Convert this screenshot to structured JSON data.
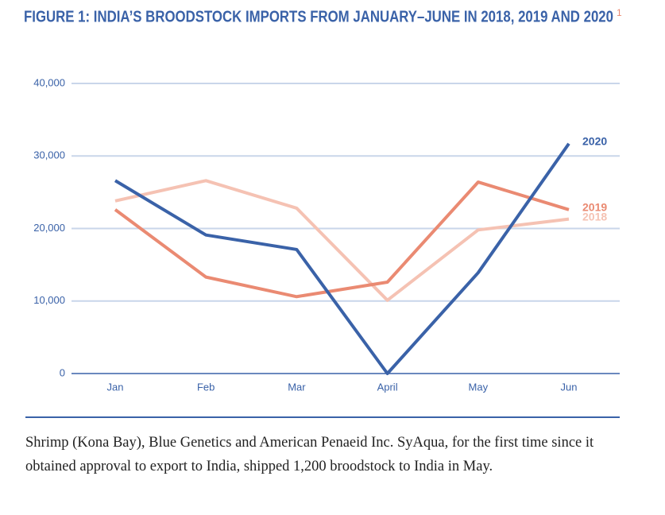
{
  "chart_data": {
    "type": "line",
    "title": "FIGURE 1: INDIA’S BROODSTOCK IMPORTS FROM JANUARY–JUNE IN 2018, 2019 AND 2020",
    "title_footnote": "1",
    "categories": [
      "Jan",
      "Feb",
      "Mar",
      "April",
      "May",
      "Jun"
    ],
    "series": [
      {
        "name": "2018",
        "color": "#f5c2b3",
        "values": [
          23800,
          26600,
          22800,
          10100,
          19800,
          21300
        ]
      },
      {
        "name": "2019",
        "color": "#ea8a72",
        "values": [
          22600,
          13300,
          10600,
          12600,
          26400,
          22600
        ]
      },
      {
        "name": "2020",
        "color": "#3a62a8",
        "values": [
          26600,
          19100,
          17100,
          0,
          13900,
          31700
        ]
      }
    ],
    "ylim": [
      0,
      40000
    ],
    "yticks": [
      0,
      {
        "value": 10000,
        "label": "10,000"
      },
      {
        "value": 20000,
        "label": "20,000"
      },
      {
        "value": 30000,
        "label": "30,000"
      },
      {
        "value": 40000,
        "label": "40,000"
      }
    ],
    "grid": true
  },
  "caption": "Shrimp (Kona Bay), Blue Genetics and American Penaeid Inc. SyAqua, for the first time since it obtained approval to export to India, shipped 1,200 broodstock to India in May."
}
